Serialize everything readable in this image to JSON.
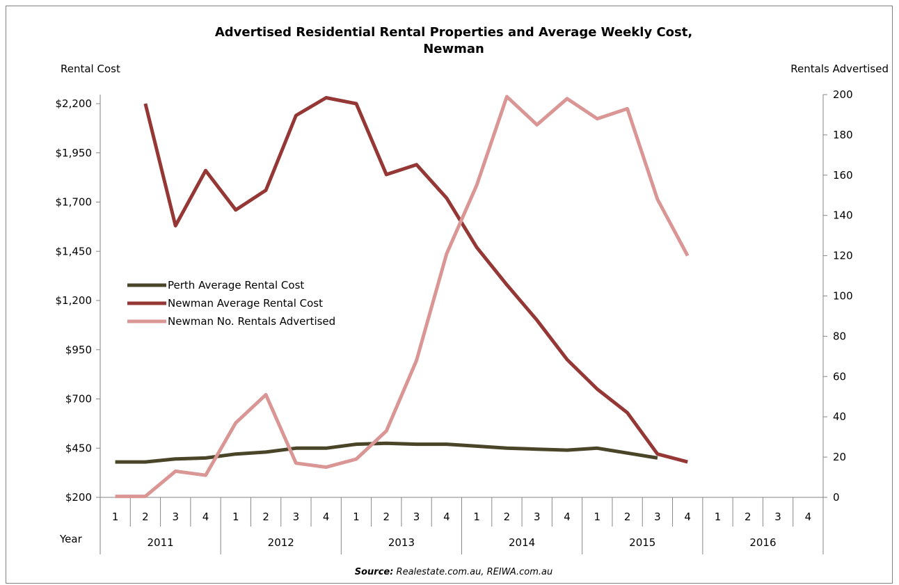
{
  "chart_data": {
    "type": "line",
    "title_line1": "Advertised Residential Rental Properties and Average Weekly Cost,",
    "title_line2": "Newman",
    "left_axis_label": "Rental Cost",
    "right_axis_label": "Rentals Advertised",
    "year_axis_label": "Year",
    "left_ylim": [
      200,
      2200
    ],
    "left_ticks": [
      200,
      450,
      700,
      950,
      1200,
      1450,
      1700,
      1950,
      2200
    ],
    "left_tick_labels": [
      "$200",
      "$450",
      "$700",
      "$950",
      "$1,200",
      "$1,450",
      "$1,700",
      "$1,950",
      "$2,200"
    ],
    "right_ylim": [
      0,
      200
    ],
    "right_ticks": [
      0,
      20,
      40,
      60,
      80,
      100,
      120,
      140,
      160,
      180,
      200
    ],
    "right_tick_labels": [
      "0",
      "20",
      "40",
      "60",
      "80",
      "100",
      "120",
      "140",
      "160",
      "180",
      "200"
    ],
    "years": [
      "2011",
      "2012",
      "2013",
      "2014",
      "2015",
      "2016"
    ],
    "quarters": [
      "1",
      "2",
      "3",
      "4",
      "1",
      "2",
      "3",
      "4",
      "1",
      "2",
      "3",
      "4",
      "1",
      "2",
      "3",
      "4",
      "1",
      "2",
      "3",
      "4",
      "1",
      "2",
      "3",
      "4"
    ],
    "grid": false,
    "legend_position": "center-left",
    "series": [
      {
        "name": "Perth Average Rental Cost",
        "axis": "left",
        "color": "#4a4528",
        "values": [
          380,
          380,
          395,
          400,
          420,
          430,
          450,
          450,
          470,
          475,
          470,
          470,
          460,
          450,
          445,
          440,
          450,
          425,
          400,
          null,
          null,
          null,
          null,
          null
        ]
      },
      {
        "name": "Newman Average Rental Cost",
        "axis": "left",
        "color": "#953735",
        "values": [
          null,
          2200,
          1580,
          1860,
          1660,
          1760,
          2140,
          2230,
          2200,
          1840,
          1890,
          1720,
          1470,
          1280,
          1100,
          900,
          750,
          630,
          420,
          380,
          null,
          null,
          null,
          null
        ]
      },
      {
        "name": "Newman No. Rentals Advertised",
        "axis": "right",
        "color": "#d99694",
        "values": [
          0.5,
          0.5,
          13,
          11,
          37,
          51,
          17,
          15,
          19,
          33,
          68,
          121,
          155,
          199,
          185,
          198,
          188,
          193,
          148,
          120,
          null,
          null,
          null,
          null
        ]
      }
    ],
    "source_prefix": "Source:",
    "source_text": " Realestate.com.au, REIWA.com.au"
  }
}
